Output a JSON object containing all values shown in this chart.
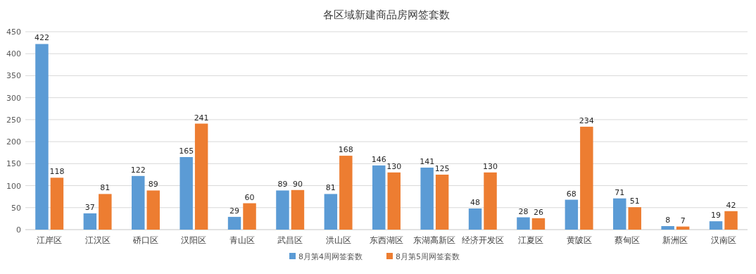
{
  "chart_data": {
    "type": "bar",
    "title": "各区域新建商品房网签套数",
    "categories": [
      "江岸区",
      "江汉区",
      "硚口区",
      "汉阳区",
      "青山区",
      "武昌区",
      "洪山区",
      "东西湖区",
      "东湖高新区",
      "经济开发区",
      "江夏区",
      "黄陂区",
      "蔡甸区",
      "新洲区",
      "汉南区"
    ],
    "series": [
      {
        "name": "8月第4周网签套数",
        "color": "#5b9bd5",
        "values": [
          422,
          37,
          122,
          165,
          29,
          89,
          81,
          146,
          141,
          48,
          28,
          68,
          71,
          8,
          19
        ]
      },
      {
        "name": "8月第5周网签套数",
        "color": "#ed7d31",
        "values": [
          118,
          81,
          89,
          241,
          60,
          90,
          168,
          130,
          125,
          130,
          26,
          234,
          51,
          7,
          42
        ]
      }
    ],
    "ylim": [
      0,
      450
    ],
    "yticks": [
      0,
      50,
      100,
      150,
      200,
      250,
      300,
      350,
      400,
      450
    ],
    "grid": "y",
    "legend": "bottom",
    "data_labels": true
  }
}
